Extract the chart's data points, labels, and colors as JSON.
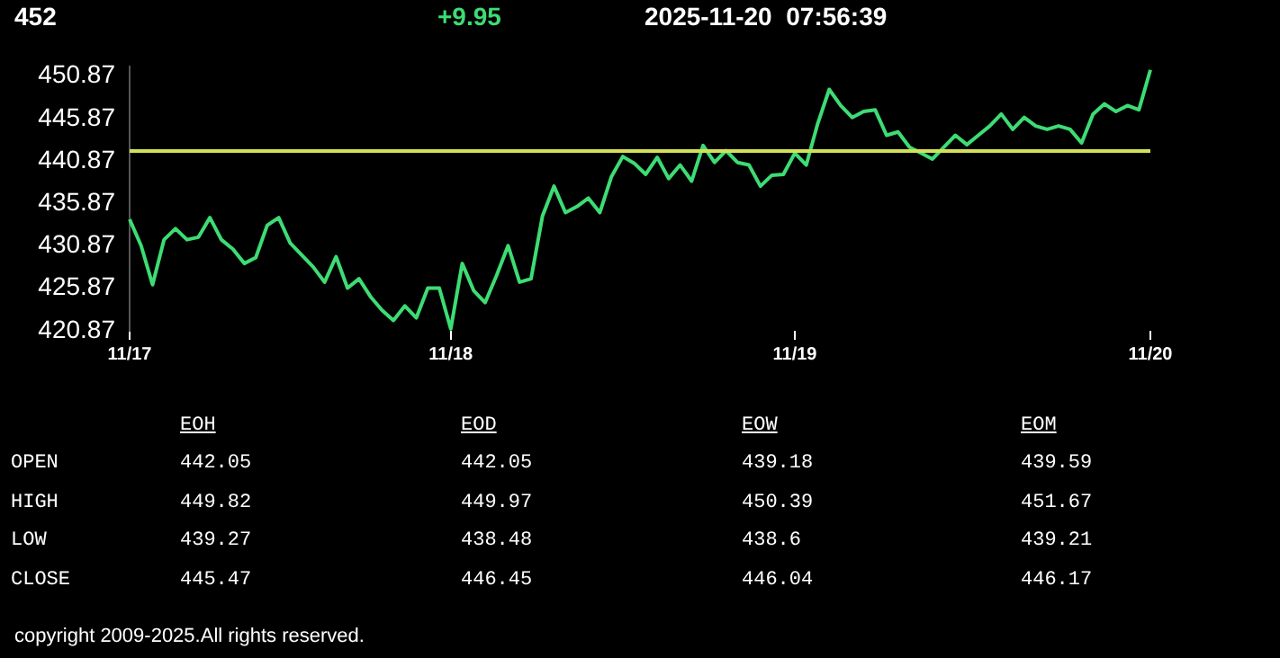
{
  "chart_data": {
    "type": "line",
    "title": "452",
    "subtitle": "+9.95",
    "annotations": [
      "2025-11-20  07:56:39",
      "EOH",
      "EOD",
      "EOW",
      "EOM",
      "OPEN",
      "442.05",
      "442.05",
      "439.18",
      "439.59",
      "HIGH",
      "449.82",
      "449.97",
      "450.39",
      "451.67",
      "LOW",
      "439.27",
      "438.48",
      "438.6",
      "439.21",
      "CLOSE",
      "445.47",
      "446.45",
      "446.04",
      "446.17",
      "copyright 2009-2025.All rights reserved."
    ],
    "categories": [
      "11/17",
      null,
      null,
      null,
      null,
      null,
      null,
      null,
      null,
      null,
      null,
      null,
      null,
      null,
      null,
      null,
      null,
      null,
      null,
      null,
      null,
      null,
      null,
      null,
      null,
      null,
      null,
      null,
      "11/18",
      null,
      null,
      null,
      null,
      null,
      null,
      null,
      null,
      null,
      null,
      null,
      null,
      null,
      null,
      null,
      null,
      null,
      null,
      null,
      null,
      null,
      null,
      null,
      null,
      null,
      null,
      null,
      null,
      null,
      "11/19",
      null,
      null,
      null,
      null,
      null,
      null,
      null,
      null,
      null,
      null,
      null,
      null,
      null,
      null,
      null,
      null,
      null,
      null,
      null,
      null,
      null,
      null,
      null,
      null,
      null,
      null,
      null,
      null,
      null,
      null,
      "11/20"
    ],
    "series": [
      {
        "color": "#3ddc74",
        "values": [
          434.0,
          430.9,
          426.3,
          431.6,
          432.9,
          431.6,
          431.9,
          434.2,
          431.6,
          430.5,
          428.8,
          429.5,
          433.3,
          434.2,
          431.2,
          429.8,
          428.4,
          426.6,
          429.6,
          425.9,
          427.0,
          424.9,
          423.3,
          422.1,
          423.8,
          422.4,
          425.9,
          425.9,
          421.1,
          428.8,
          425.6,
          424.2,
          427.4,
          430.9,
          426.6,
          427.0,
          434.4,
          437.9,
          434.8,
          435.5,
          436.5,
          434.8,
          439.0,
          441.4,
          440.6,
          439.3,
          441.3,
          438.8,
          440.4,
          438.5,
          442.7,
          440.7,
          442.1,
          440.7,
          440.4,
          437.9,
          439.2,
          439.3,
          441.8,
          440.4,
          445.3,
          449.3,
          447.4,
          446.0,
          446.7,
          446.9,
          443.9,
          444.3,
          442.5,
          441.8,
          441.1,
          442.5,
          443.9,
          442.8,
          443.9,
          445.0,
          446.4,
          444.6,
          446.0,
          445.0,
          444.6,
          445.0,
          444.6,
          443.0,
          446.4,
          447.6,
          446.7,
          447.4,
          446.9,
          451.6
        ]
      }
    ],
    "ylim": [
      420.87,
      452
    ],
    "yticks": [
      420.87,
      425.87,
      430.87,
      435.87,
      440.87,
      445.87,
      450.87
    ],
    "ref_lines": [
      {
        "axis": "y",
        "value": 442.05,
        "color": "#d4e157"
      }
    ],
    "grid": false,
    "legend": false,
    "marker": "none",
    "line_style": "solid"
  }
}
